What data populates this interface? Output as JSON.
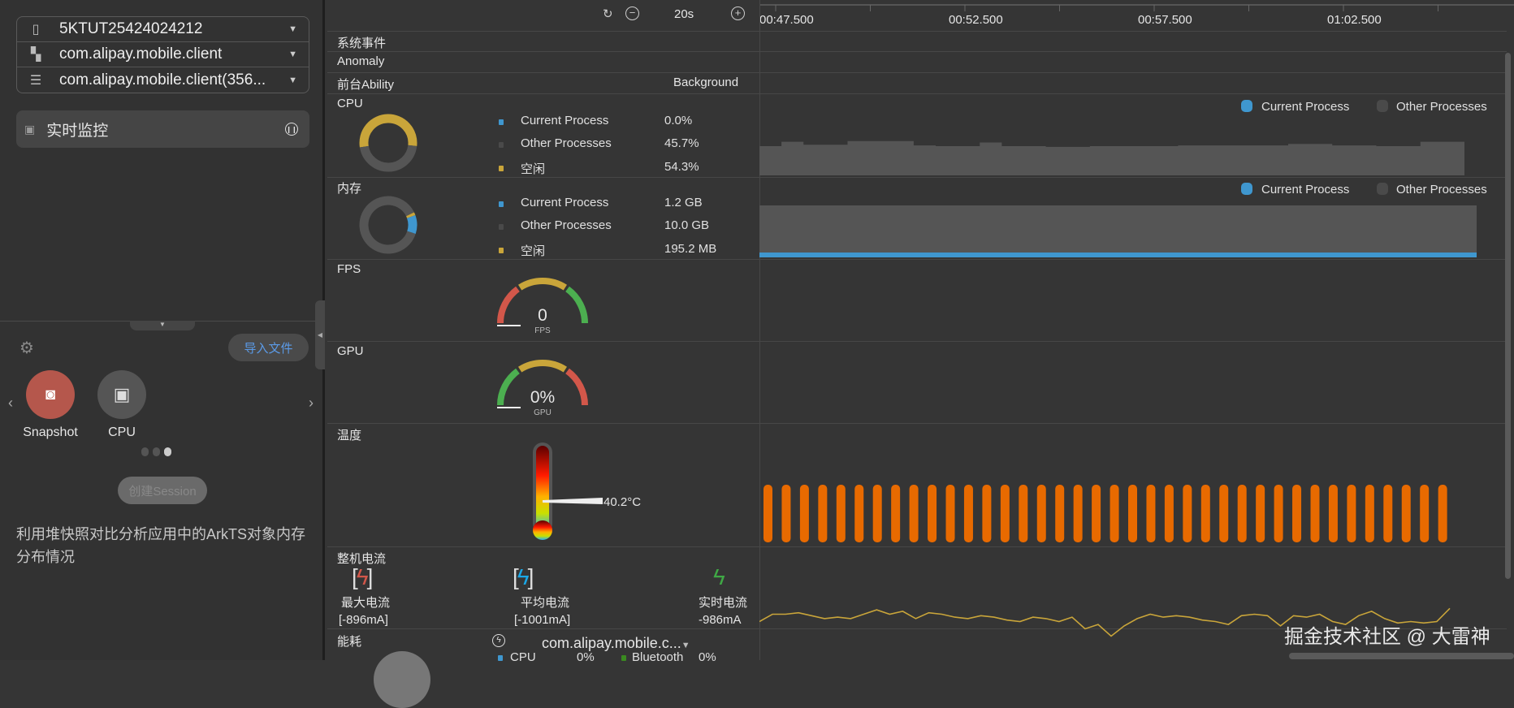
{
  "left": {
    "selectors": [
      {
        "icon": "phone-icon",
        "value": "5KTUT25424024212"
      },
      {
        "icon": "apps-icon",
        "value": "com.alipay.mobile.client"
      },
      {
        "icon": "process-icon",
        "value": "com.alipay.mobile.client(356..."
      }
    ],
    "monitor_label": "实时监控",
    "import_label": "导入文件",
    "tools": [
      {
        "label": "Snapshot",
        "color": "#b5574c"
      },
      {
        "label": "CPU",
        "color": "#555555"
      }
    ],
    "create_session": "创建Session",
    "description": "利用堆快照对比分析应用中的ArkTS对象内存分布情况"
  },
  "toolbar": {
    "zoom": "20s"
  },
  "timeline": {
    "ticks": [
      "00:47.500",
      "00:52.500",
      "00:57.500",
      "01:02.500"
    ]
  },
  "rows": {
    "sys_events": "系统事件",
    "anomaly": "Anomaly",
    "ability": "前台Ability",
    "ability_value": "Background",
    "cpu": "CPU",
    "mem": "内存",
    "fps": "FPS",
    "gpu": "GPU",
    "temp": "温度",
    "current": "整机电流",
    "energy": "能耗"
  },
  "colors": {
    "current": "#3f97cf",
    "other": "#555555",
    "idle": "#c9a53a",
    "temp_bar": "#e86a00",
    "current_line": "#c9a53a"
  },
  "cpu": {
    "legend": [
      {
        "label": "Current Process",
        "value": "0.0%"
      },
      {
        "label": "Other Processes",
        "value": "45.7%"
      },
      {
        "label": "空闲",
        "value": "54.3%"
      }
    ],
    "fractions": [
      0.0,
      0.457,
      0.543
    ]
  },
  "mem": {
    "legend": [
      {
        "label": "Current Process",
        "value": "1.2 GB"
      },
      {
        "label": "Other Processes",
        "value": "10.0 GB"
      },
      {
        "label": "空闲",
        "value": "195.2 MB"
      }
    ],
    "fractions": [
      0.105,
      0.878,
      0.017
    ]
  },
  "tl_legend": {
    "current": "Current Process",
    "other": "Other Processes"
  },
  "fps": {
    "value": "0",
    "unit": "FPS"
  },
  "gpu": {
    "value": "0%",
    "unit": "GPU"
  },
  "temp": {
    "value": "40.2°C"
  },
  "current": {
    "max_label": "最大电流",
    "max_value": "[-896mA]",
    "avg_label": "平均电流",
    "avg_value": "[-1001mA]",
    "rt_label": "实时电流",
    "rt_value": "-986mA"
  },
  "energy": {
    "process": "com.alipay.mobile.c...",
    "cpu_label": "CPU",
    "cpu_value": "0%",
    "bt_label": "Bluetooth",
    "bt_value": "0%"
  },
  "watermark": "掘金技术社区 @ 大雷神",
  "chart_data": [
    {
      "type": "area",
      "name": "CPU",
      "series": [
        {
          "name": "Other Processes",
          "values": [
            40,
            46,
            42,
            42,
            47,
            47,
            47,
            41,
            40,
            40,
            45,
            40,
            40,
            39,
            39,
            40,
            40,
            40,
            40,
            41,
            41,
            41,
            41,
            41,
            43,
            43,
            41,
            41,
            40,
            40,
            46,
            46
          ]
        },
        {
          "name": "Current Process",
          "values": [
            0,
            0,
            0,
            0,
            0,
            0,
            0,
            0,
            0,
            0,
            0,
            0,
            0,
            0,
            0,
            0,
            0,
            0,
            0,
            0,
            0,
            0,
            0,
            0,
            0,
            0,
            0,
            0,
            0,
            0,
            0,
            0
          ]
        }
      ],
      "ylim": [
        0,
        100
      ]
    },
    {
      "type": "area",
      "name": "内存",
      "series": [
        {
          "name": "Other Processes",
          "values": [
            10.0,
            10.0
          ]
        },
        {
          "name": "Current Process",
          "values": [
            1.2,
            1.2
          ]
        }
      ],
      "unit": "GB"
    },
    {
      "type": "bar",
      "name": "温度",
      "values_count": 38,
      "value": 40.2
    },
    {
      "type": "line",
      "name": "整机电流",
      "values": [
        -990,
        -980,
        -980,
        -978,
        -982,
        -986,
        -984,
        -986,
        -980,
        -974,
        -980,
        -976,
        -986,
        -978,
        -980,
        -984,
        -986,
        -982,
        -984,
        -988,
        -990,
        -984,
        -986,
        -990,
        -984,
        -1000,
        -994,
        -1010,
        -996,
        -986,
        -980,
        -984,
        -982,
        -984,
        -988,
        -990,
        -994,
        -982,
        -980,
        -982,
        -996,
        -982,
        -984,
        -980,
        -990,
        -994,
        -982,
        -976,
        -986,
        -992,
        -990,
        -992,
        -990,
        -972
      ]
    }
  ]
}
